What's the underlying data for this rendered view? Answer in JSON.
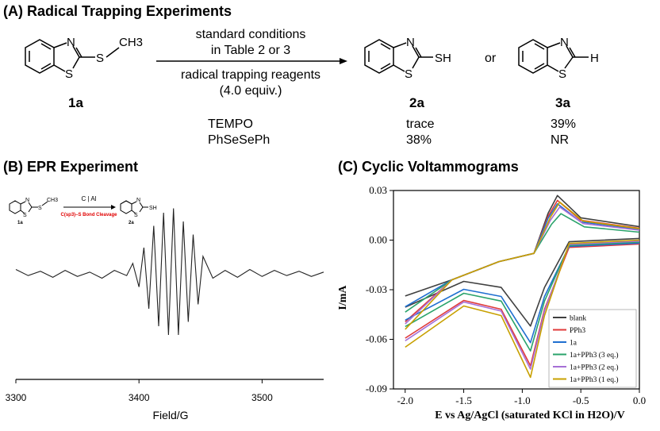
{
  "panel_a": {
    "title": "(A) Radical Trapping Experiments",
    "conditions": [
      "standard conditions",
      "in Table 2 or 3",
      "radical trapping reagents",
      "(4.0 equiv.)"
    ],
    "labels": {
      "start": "1a",
      "product2": "2a",
      "product3": "3a",
      "or": "or"
    },
    "atoms": {
      "N": "N",
      "S": "S",
      "CH3": "CH3",
      "SH": "SH",
      "H": "H"
    },
    "table": [
      {
        "reagent": "TEMPO",
        "y2a": "trace",
        "y3a": "39%"
      },
      {
        "reagent": "PhSeSePh",
        "y2a": "38%",
        "y3a": "NR"
      }
    ]
  },
  "panel_b": {
    "title": "(B) EPR Experiment",
    "inset": {
      "above": "C | Al",
      "below": "C(sp3)–S Bond Cleavage",
      "start": "1a",
      "product": "2a"
    }
  },
  "panel_c": {
    "title": "(C) Cyclic Voltammograms"
  },
  "chart_data": [
    {
      "type": "line",
      "title": "",
      "xlabel": "Field/G",
      "ylabel": "",
      "xlim": [
        3300,
        3550
      ],
      "x_ticks": [
        "3300",
        "3400",
        "3500"
      ],
      "y_ticks_shown": false,
      "grid": false,
      "series": [
        {
          "values": [
            [
              3300,
              0.05
            ],
            [
              3310,
              -0.02
            ],
            [
              3320,
              0.03
            ],
            [
              3330,
              -0.04
            ],
            [
              3340,
              0.04
            ],
            [
              3350,
              -0.03
            ],
            [
              3360,
              0.02
            ],
            [
              3370,
              -0.05
            ],
            [
              3380,
              0.04
            ],
            [
              3390,
              -0.02
            ],
            [
              3395,
              0.12
            ],
            [
              3400,
              -0.15
            ],
            [
              3404,
              0.3
            ],
            [
              3408,
              -0.4
            ],
            [
              3412,
              0.55
            ],
            [
              3416,
              -0.6
            ],
            [
              3420,
              0.7
            ],
            [
              3424,
              -0.7
            ],
            [
              3428,
              0.75
            ],
            [
              3432,
              -0.7
            ],
            [
              3436,
              0.6
            ],
            [
              3440,
              -0.55
            ],
            [
              3444,
              0.45
            ],
            [
              3448,
              -0.35
            ],
            [
              3452,
              0.2
            ],
            [
              3460,
              -0.05
            ],
            [
              3470,
              0.04
            ],
            [
              3480,
              -0.04
            ],
            [
              3490,
              0.05
            ],
            [
              3500,
              -0.03
            ],
            [
              3510,
              0.04
            ],
            [
              3520,
              -0.02
            ],
            [
              3530,
              0.03
            ],
            [
              3540,
              -0.03
            ],
            [
              3550,
              0.02
            ]
          ]
        }
      ]
    },
    {
      "type": "line",
      "title": "",
      "xlabel": "E vs Ag/AgCl (saturated KCl in H2O)/V",
      "ylabel": "I/mA",
      "xlim": [
        -2.1,
        0.0
      ],
      "ylim": [
        -0.09,
        0.03
      ],
      "x_ticks": [
        "-2.0",
        "-1.5",
        "-1.0",
        "-0.5",
        "0.0"
      ],
      "y_ticks": [
        "0.03",
        "0.00",
        "-0.03",
        "-0.06",
        "-0.09"
      ],
      "grid": false,
      "legend": "bottom-right",
      "series": [
        {
          "name": "blank",
          "color": "#404040",
          "cathodic_peak": [
            -0.93,
            -0.052
          ],
          "anodic_peak": [
            -0.7,
            0.027
          ]
        },
        {
          "name": "PPh3",
          "color": "#e03a3a",
          "cathodic_peak": [
            -0.93,
            -0.076
          ],
          "anodic_peak": [
            -0.7,
            0.024
          ]
        },
        {
          "name": "1a",
          "color": "#1f6fd0",
          "cathodic_peak": [
            -0.93,
            -0.062
          ],
          "anodic_peak": [
            -0.7,
            0.022
          ]
        },
        {
          "name": "1a+PPh3 (3 eq.)",
          "color": "#2aa36b",
          "cathodic_peak": [
            -0.93,
            -0.067
          ],
          "anodic_peak": [
            -0.67,
            0.016
          ]
        },
        {
          "name": "1a+PPh3 (2 eq.)",
          "color": "#a66fd6",
          "cathodic_peak": [
            -0.93,
            -0.078
          ],
          "anodic_peak": [
            -0.68,
            0.02
          ]
        },
        {
          "name": "1a+PPh3 (1 eq.)",
          "color": "#c8a000",
          "cathodic_peak": [
            -0.93,
            -0.083
          ],
          "anodic_peak": [
            -0.68,
            0.023
          ]
        }
      ]
    }
  ]
}
